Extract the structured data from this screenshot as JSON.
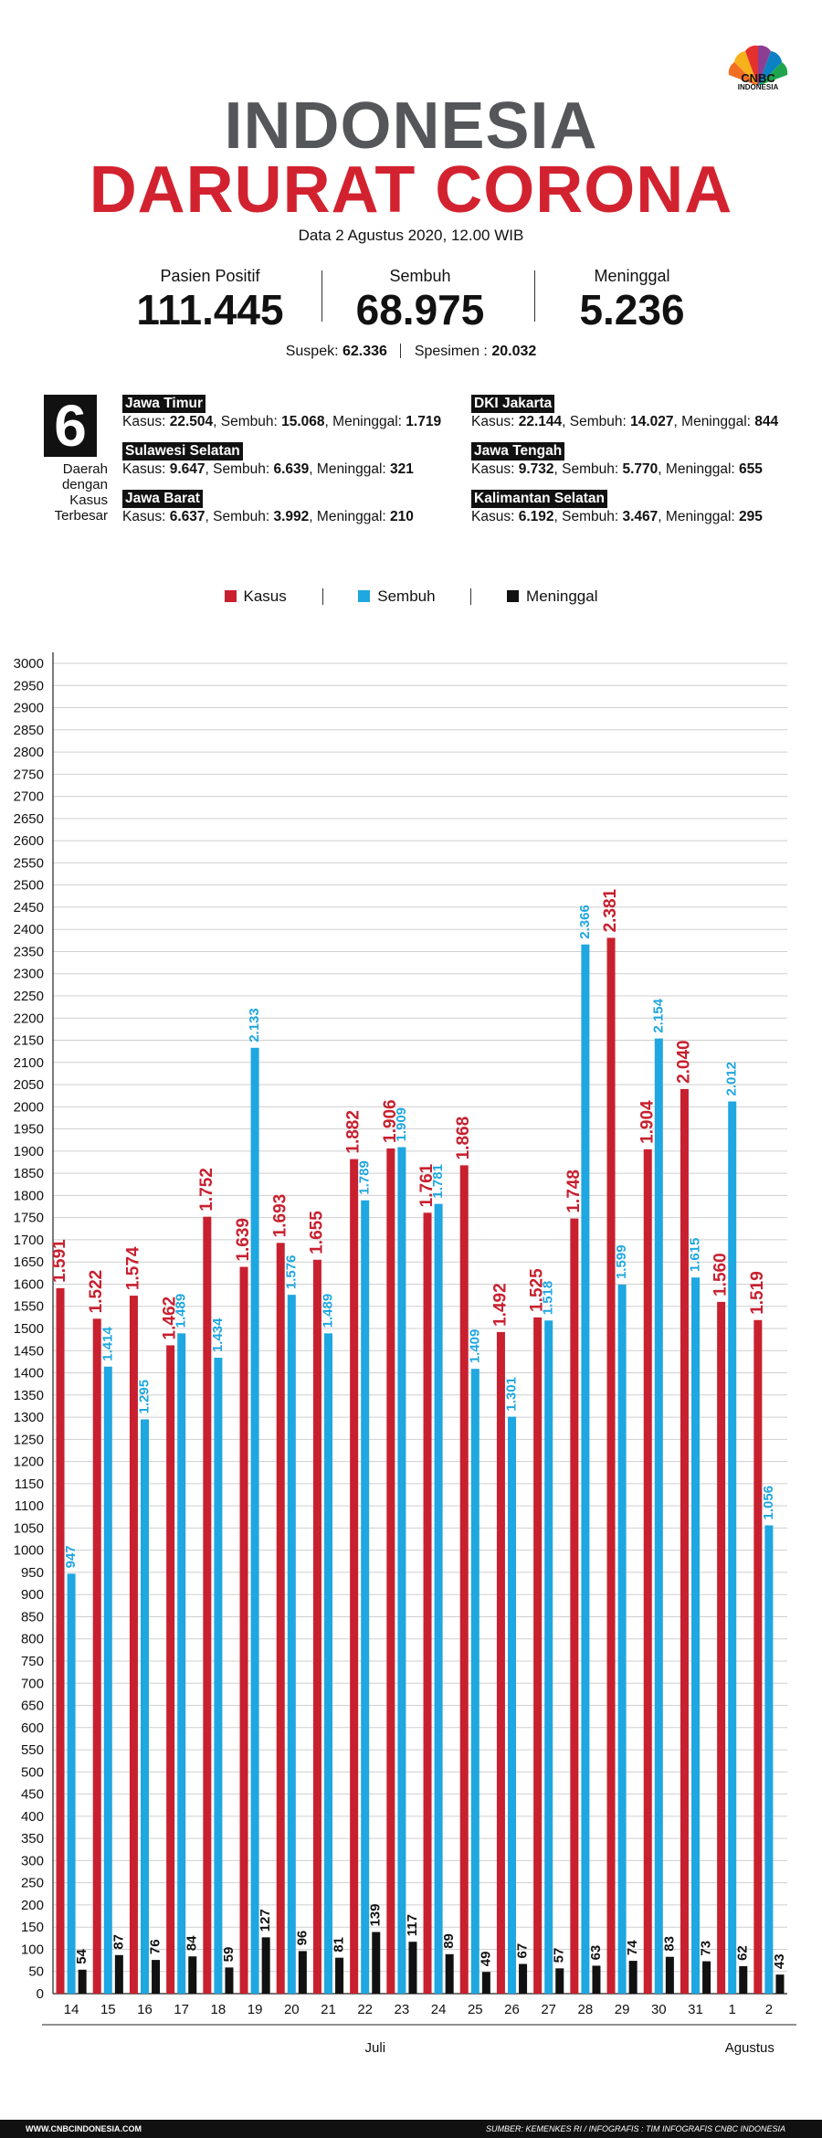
{
  "brand": {
    "logo_text": "CNBC",
    "logo_sub": "INDONESIA"
  },
  "header": {
    "title_line1": "INDONESIA",
    "title_line2": "DARURAT CORONA",
    "date": "Data 2 Agustus 2020, 12.00 WIB"
  },
  "stats": [
    {
      "label": "Pasien Positif",
      "value": "111.445"
    },
    {
      "label": "Sembuh",
      "value": "68.975"
    },
    {
      "label": "Meninggal",
      "value": "5.236"
    }
  ],
  "substats": {
    "suspek_label": "Suspek:",
    "suspek_value": "62.336",
    "spesimen_label": "Spesimen :",
    "spesimen_value": "20.032"
  },
  "regions_box": {
    "number": "6",
    "caption": "Daerah dengan Kasus Terbesar"
  },
  "regions": [
    {
      "name": "Jawa Timur",
      "kasus": "22.504",
      "sembuh": "15.068",
      "meninggal": "1.719"
    },
    {
      "name": "Sulawesi Selatan",
      "kasus": "9.647",
      "sembuh": "6.639",
      "meninggal": "321"
    },
    {
      "name": "Jawa Barat",
      "kasus": "6.637",
      "sembuh": "3.992",
      "meninggal": "210"
    },
    {
      "name": "DKI Jakarta",
      "kasus": "22.144",
      "sembuh": "14.027",
      "meninggal": "844"
    },
    {
      "name": "Jawa Tengah",
      "kasus": "9.732",
      "sembuh": "5.770",
      "meninggal": "655"
    },
    {
      "name": "Kalimantan Selatan",
      "kasus": "6.192",
      "sembuh": "3.467",
      "meninggal": "295"
    }
  ],
  "region_labels": {
    "kasus": "Kasus:",
    "sembuh": "Sembuh:",
    "meninggal": "Meninggal:"
  },
  "colors": {
    "kasus": "#c8202f",
    "sembuh": "#1ea7e1",
    "meninggal": "#111111",
    "title2": "#d3222f"
  },
  "chart_data": {
    "type": "bar",
    "categories": [
      "14",
      "15",
      "16",
      "17",
      "18",
      "19",
      "20",
      "21",
      "22",
      "23",
      "24",
      "25",
      "26",
      "27",
      "28",
      "29",
      "30",
      "31",
      "1",
      "2"
    ],
    "series": [
      {
        "name": "Kasus",
        "values": [
          1591,
          1522,
          1574,
          1462,
          1752,
          1639,
          1693,
          1655,
          1882,
          1906,
          1761,
          1868,
          1492,
          1525,
          1748,
          2381,
          1904,
          2040,
          1560,
          1519
        ],
        "labels": [
          "1.591",
          "1.522",
          "1.574",
          "1.462",
          "1.752",
          "1.639",
          "1.693",
          "1.655",
          "1.882",
          "1.906",
          "1.761",
          "1.868",
          "1.492",
          "1.525",
          "1.748",
          "2.381",
          "1.904",
          "2.040",
          "1.560",
          "1.519"
        ]
      },
      {
        "name": "Sembuh",
        "values": [
          947,
          1414,
          1295,
          1489,
          1434,
          2133,
          1576,
          1489,
          1789,
          1909,
          1781,
          1409,
          1301,
          1518,
          2366,
          1599,
          2154,
          1615,
          2012,
          1056
        ],
        "labels": [
          "947",
          "1.414",
          "1.295",
          "1.489",
          "1.434",
          "2.133",
          "1.576",
          "1.489",
          "1.789",
          "1.909",
          "1.781",
          "1.409",
          "1.301",
          "1.518",
          "2.366",
          "1.599",
          "2.154",
          "1.615",
          "2.012",
          "1.056"
        ]
      },
      {
        "name": "Meninggal",
        "values": [
          54,
          87,
          76,
          84,
          59,
          127,
          96,
          81,
          139,
          117,
          89,
          49,
          67,
          57,
          63,
          74,
          83,
          73,
          62,
          43
        ],
        "labels": [
          "54",
          "87",
          "76",
          "84",
          "59",
          "127",
          "96",
          "81",
          "139",
          "117",
          "89",
          "49",
          "67",
          "57",
          "63",
          "74",
          "83",
          "73",
          "62",
          "43"
        ]
      }
    ],
    "yticks": [
      0,
      50,
      100,
      150,
      200,
      250,
      300,
      350,
      400,
      450,
      500,
      550,
      600,
      650,
      700,
      750,
      800,
      850,
      900,
      950,
      1000,
      1050,
      1100,
      1150,
      1200,
      1250,
      1300,
      1350,
      1400,
      1450,
      1500,
      1550,
      1600,
      1650,
      1700,
      1750,
      1800,
      1850,
      1900,
      1950,
      2000,
      2050,
      2100,
      2150,
      2200,
      2250,
      2300,
      2350,
      2400,
      2450,
      2500,
      2550,
      2600,
      2650,
      2700,
      2750,
      2800,
      2850,
      2900,
      2950,
      3000
    ],
    "ylim": [
      0,
      3000
    ],
    "month_groups": [
      {
        "label": "Juli",
        "from": 0,
        "to": 17
      },
      {
        "label": "Agustus",
        "from": 18,
        "to": 19
      }
    ],
    "grid": true,
    "legend": "top-center"
  },
  "footer": {
    "left": "WWW.CNBCINDONESIA.COM",
    "right": "SUMBER: KEMENKES RI / INFOGRAFIS : TIM INFOGRAFIS CNBC INDONESIA"
  }
}
